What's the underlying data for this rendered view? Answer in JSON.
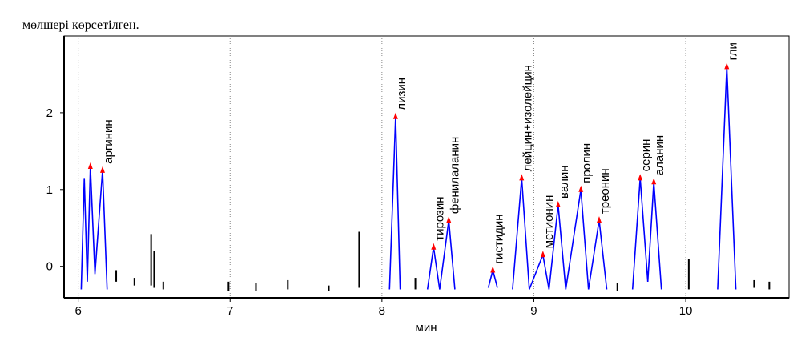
{
  "text_above": "мөлшері көрсетілген.",
  "chart_data": {
    "type": "line",
    "x_label": "мин",
    "xlim": [
      5.907,
      10.68
    ],
    "ylim": [
      -0.41,
      3.0
    ],
    "xticks": [
      6,
      7,
      8,
      9,
      10
    ],
    "yticks": [
      0,
      1,
      2
    ],
    "grid": true,
    "series": [
      {
        "color": "#0000ff",
        "x": [
          6.02,
          6.04,
          6.06,
          6.08,
          6.11,
          6.16,
          6.19,
          6.2,
          8.05,
          8.09,
          8.12,
          8.13,
          8.3,
          8.34,
          8.38,
          8.44,
          8.48,
          8.49,
          8.7,
          8.73,
          8.76,
          8.77,
          8.86,
          8.92,
          8.97,
          9.06,
          9.1,
          9.16,
          9.21,
          9.31,
          9.36,
          9.43,
          9.48,
          9.49,
          9.65,
          9.7,
          9.75,
          9.79,
          9.84,
          9.85,
          10.21,
          10.27,
          10.33
        ],
        "values": [
          -0.3,
          1.15,
          -0.2,
          1.3,
          -0.1,
          1.25,
          -0.3,
          null,
          -0.3,
          1.95,
          -0.3,
          null,
          -0.3,
          0.25,
          -0.3,
          0.6,
          -0.3,
          null,
          -0.28,
          -0.05,
          -0.28,
          null,
          -0.3,
          1.15,
          -0.3,
          0.15,
          -0.3,
          0.8,
          -0.3,
          1.0,
          -0.3,
          0.6,
          -0.3,
          null,
          -0.3,
          1.15,
          -0.2,
          1.1,
          -0.3,
          null,
          -0.3,
          2.6,
          -0.3
        ]
      }
    ],
    "noise_color": "#000000",
    "noise": [
      {
        "x": 6.25,
        "low": -0.2,
        "high": -0.05
      },
      {
        "x": 6.37,
        "low": -0.25,
        "high": -0.15
      },
      {
        "x": 6.48,
        "low": -0.25,
        "high": 0.42
      },
      {
        "x": 6.5,
        "low": -0.28,
        "high": 0.2
      },
      {
        "x": 6.56,
        "low": -0.3,
        "high": -0.2
      },
      {
        "x": 6.99,
        "low": -0.32,
        "high": -0.2
      },
      {
        "x": 7.17,
        "low": -0.32,
        "high": -0.22
      },
      {
        "x": 7.38,
        "low": -0.3,
        "high": -0.18
      },
      {
        "x": 7.65,
        "low": -0.32,
        "high": -0.25
      },
      {
        "x": 7.85,
        "low": -0.28,
        "high": 0.45
      },
      {
        "x": 8.22,
        "low": -0.3,
        "high": -0.15
      },
      {
        "x": 9.55,
        "low": -0.32,
        "high": -0.22
      },
      {
        "x": 10.02,
        "low": -0.3,
        "high": 0.1
      },
      {
        "x": 10.45,
        "low": -0.28,
        "high": -0.18
      },
      {
        "x": 10.55,
        "low": -0.3,
        "high": -0.2
      }
    ],
    "marker_color": "#ff0000",
    "peaks": [
      {
        "label": null,
        "x": 6.08,
        "y": 1.3
      },
      {
        "label": "аргинин",
        "x": 6.16,
        "y": 1.25
      },
      {
        "label": "лизин",
        "x": 8.09,
        "y": 1.95
      },
      {
        "label": "тирозин",
        "x": 8.34,
        "y": 0.25
      },
      {
        "label": "фенилаланин",
        "x": 8.44,
        "y": 0.6
      },
      {
        "label": "гистидин",
        "x": 8.73,
        "y": -0.05
      },
      {
        "label": "лейцин+изолейцин",
        "x": 8.92,
        "y": 1.15
      },
      {
        "label": "метионин",
        "x": 9.06,
        "y": 0.15
      },
      {
        "label": "валин",
        "x": 9.16,
        "y": 0.8
      },
      {
        "label": "пролин",
        "x": 9.31,
        "y": 1.0
      },
      {
        "label": "треонин",
        "x": 9.43,
        "y": 0.6
      },
      {
        "label": "серин",
        "x": 9.7,
        "y": 1.15
      },
      {
        "label": "аланин",
        "x": 9.79,
        "y": 1.1
      },
      {
        "label": "гли",
        "x": 10.27,
        "y": 2.6
      }
    ]
  }
}
